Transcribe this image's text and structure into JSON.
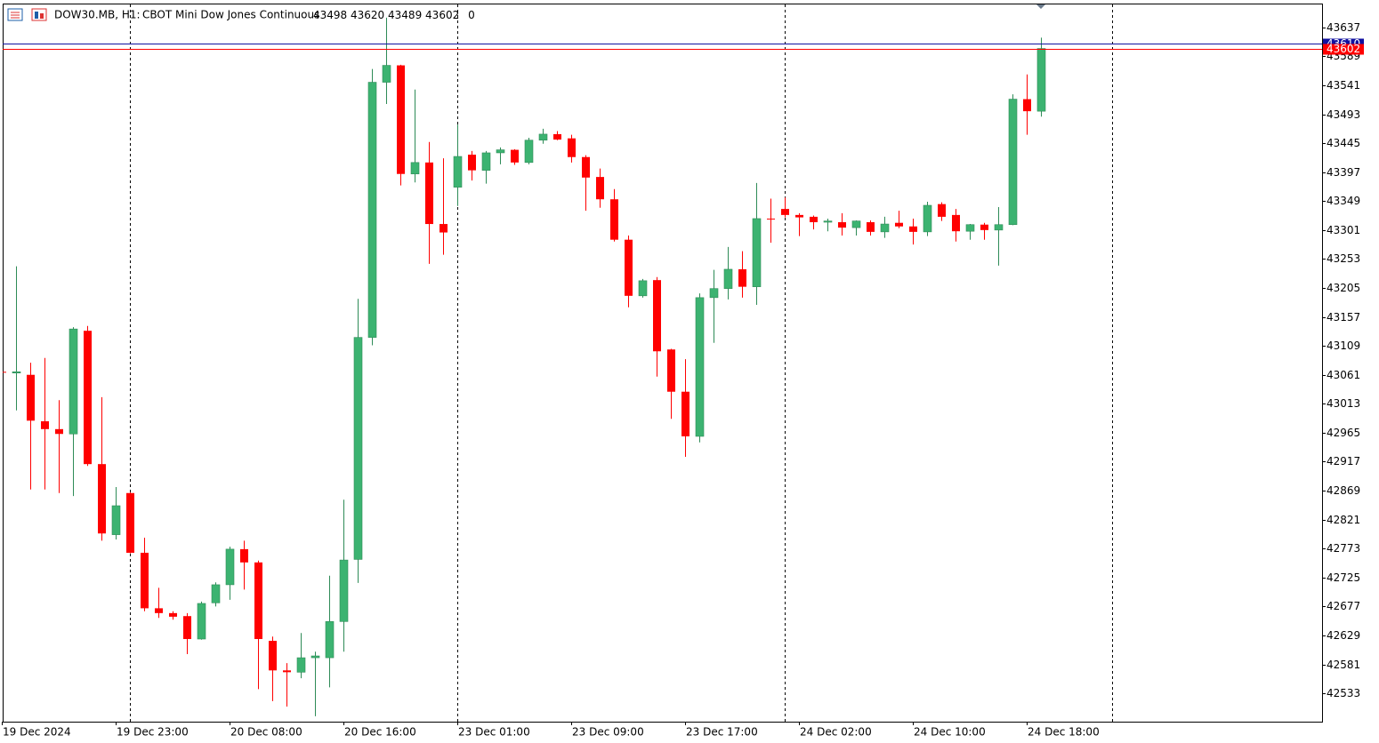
{
  "chart_data": {
    "type": "candlestick",
    "title": "DOW30.MB, H1:",
    "subtitle": "CBOT Mini Dow Jones Continuous",
    "volume": 0,
    "categories": [
      "19 Dec 2024",
      null,
      null,
      null,
      null,
      null,
      null,
      null,
      "19 Dec 23:00",
      null,
      null,
      null,
      null,
      null,
      null,
      null,
      "20 Dec 08:00",
      null,
      null,
      null,
      null,
      null,
      null,
      null,
      "20 Dec 16:00",
      null,
      null,
      null,
      null,
      null,
      null,
      null,
      "23 Dec 01:00",
      null,
      null,
      null,
      null,
      null,
      null,
      null,
      "23 Dec 09:00",
      null,
      null,
      null,
      null,
      null,
      null,
      null,
      "23 Dec 17:00",
      null,
      null,
      null,
      null,
      null,
      null,
      null,
      "24 Dec 02:00",
      null,
      null,
      null,
      null,
      null,
      null,
      null,
      "24 Dec 10:00",
      null,
      null,
      null,
      null,
      null,
      null,
      null,
      "24 Dec 18:00",
      null
    ],
    "open": [
      43066,
      43064,
      43061,
      42984,
      42971,
      42963,
      43134,
      42913,
      42796,
      42865,
      42766,
      42674,
      42666,
      42661,
      42623,
      42683,
      42713,
      42772,
      42750,
      42620,
      42571,
      42568,
      42592,
      42592,
      42652,
      42755,
      43123,
      43546,
      43574,
      43394,
      43413,
      43311,
      43372,
      43426,
      43400,
      43429,
      43434,
      43413,
      43450,
      43460,
      43453,
      43422,
      43389,
      43352,
      43285,
      43192,
      43218,
      43103,
      43033,
      42959,
      43189,
      43204,
      43236,
      43207,
      43320,
      43336,
      43326,
      43323,
      43314,
      43314,
      43305,
      43314,
      43298,
      43313,
      43307,
      43298,
      43344,
      43326,
      43299,
      43310,
      43301,
      43310,
      43518,
      43498
    ],
    "high": [
      43068,
      43241,
      43081,
      43089,
      43019,
      43140,
      43142,
      43024,
      42875,
      42866,
      42791,
      42708,
      42669,
      42666,
      42685,
      42717,
      42776,
      42786,
      42753,
      42627,
      42583,
      42633,
      42602,
      42728,
      42854,
      43187,
      43568,
      43653,
      43575,
      43534,
      43447,
      43420,
      43476,
      43432,
      43432,
      43438,
      43435,
      43454,
      43469,
      43465,
      43459,
      43425,
      43403,
      43369,
      43292,
      43220,
      43223,
      43104,
      43087,
      43196,
      43235,
      43273,
      43266,
      43379,
      43353,
      43355,
      43329,
      43325,
      43320,
      43329,
      43317,
      43317,
      43323,
      43333,
      43320,
      43348,
      43347,
      43336,
      43311,
      43313,
      43339,
      43526,
      43559,
      43620
    ],
    "low": [
      43063,
      43002,
      42871,
      42871,
      42865,
      42860,
      42910,
      42786,
      42788,
      42765,
      42669,
      42658,
      42655,
      42598,
      42622,
      42677,
      42688,
      42705,
      42540,
      42520,
      42511,
      42558,
      42495,
      42543,
      42602,
      42716,
      43110,
      43510,
      43375,
      43380,
      43245,
      43260,
      43341,
      43383,
      43378,
      43410,
      43409,
      43410,
      43444,
      43450,
      43413,
      43333,
      43338,
      43282,
      43173,
      43189,
      43058,
      42988,
      42925,
      42949,
      43114,
      43186,
      43189,
      43177,
      43280,
      43322,
      43291,
      43302,
      43299,
      43292,
      43292,
      43292,
      43288,
      43304,
      43277,
      43291,
      43316,
      43282,
      43285,
      43285,
      43242,
      43309,
      43459,
      43489
    ],
    "close": [
      43065,
      43066,
      42985,
      42971,
      42963,
      43137,
      42913,
      42798,
      42844,
      42766,
      42674,
      42666,
      42660,
      42623,
      42682,
      42713,
      42772,
      42750,
      42623,
      42571,
      42568,
      42592,
      42595,
      42652,
      42754,
      43123,
      43546,
      43574,
      43394,
      43413,
      43311,
      43297,
      43423,
      43400,
      43429,
      43434,
      43413,
      43450,
      43460,
      43451,
      43422,
      43388,
      43352,
      43285,
      43192,
      43217,
      43100,
      43033,
      42959,
      43189,
      43204,
      43236,
      43207,
      43320,
      43319,
      43326,
      43322,
      43314,
      43316,
      43305,
      43316,
      43298,
      43311,
      43307,
      43298,
      43342,
      43323,
      43299,
      43310,
      43301,
      43310,
      43518,
      43498,
      43602
    ],
    "up_color": "#3cb371",
    "down_color": "#ff0000",
    "ylim": [
      42486,
      43675
    ],
    "yticks": [
      43637,
      43589,
      43541,
      43493,
      43445,
      43397,
      43349,
      43301,
      43253,
      43205,
      43157,
      43109,
      43061,
      43013,
      42965,
      42917,
      42869,
      42821,
      42773,
      42725,
      42677,
      42629,
      42581,
      42533
    ],
    "grid": false,
    "ask_line": {
      "value": 43610,
      "color": "#1010a0"
    },
    "bid_line": {
      "value": 43602,
      "color": "#ff0000"
    }
  }
}
